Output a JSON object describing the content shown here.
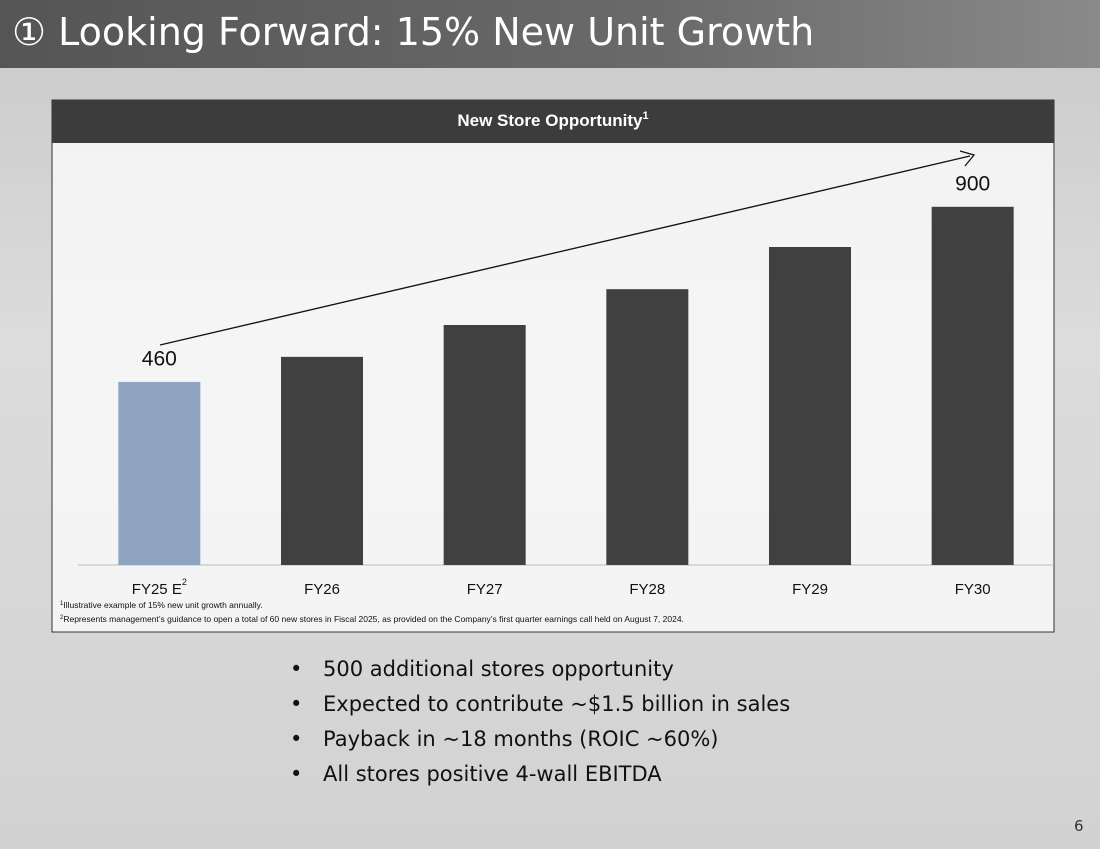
{
  "title": "① Looking Forward: 15% New Unit Growth",
  "chart_data": {
    "type": "bar",
    "title": "New Store Opportunity",
    "title_note": "1",
    "categories": [
      "FY25 E",
      "FY26",
      "FY27",
      "FY28",
      "FY29",
      "FY30"
    ],
    "first_category_note": "2",
    "values": [
      460,
      523,
      603,
      693,
      799,
      900
    ],
    "colors": [
      "#8fa4c0",
      "#404040",
      "#404040",
      "#404040",
      "#404040",
      "#404040"
    ],
    "ylim": [
      0,
      1000
    ],
    "footnotes": [
      {
        "marker": "1",
        "text": "Illustrative example of 15% new unit growth annually."
      },
      {
        "marker": "2",
        "text": "Represents management’s guidance to open a total of 60 new stores in Fiscal 2025, as provided on the Company’s first quarter earnings call held on August 7, 2024."
      }
    ]
  },
  "bullets": [
    "500 additional stores opportunity",
    "Expected to contribute ~$1.5 billion in sales",
    "Payback in ~18 months (ROIC ~60%)",
    "All stores positive 4-wall EBITDA"
  ],
  "page_number": "6"
}
